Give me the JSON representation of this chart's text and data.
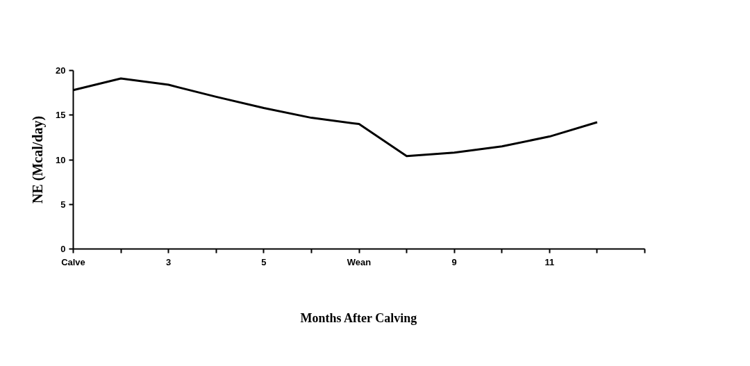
{
  "chart_data": {
    "type": "line",
    "xlabel": "Months After Calving",
    "ylabel": "NE (Mcal/day)",
    "categories": [
      "Calve",
      null,
      "3",
      null,
      "5",
      null,
      "Wean",
      null,
      "9",
      null,
      "11",
      null,
      null
    ],
    "series": [
      {
        "color": "#000000",
        "values": [
          17.8,
          19.1,
          18.4,
          17.05,
          15.8,
          14.7,
          14.0,
          10.4,
          10.8,
          11.5,
          12.6,
          14.2,
          null
        ]
      }
    ],
    "ylim": [
      0,
      20
    ],
    "yticks": [
      0,
      5,
      10,
      15,
      20
    ],
    "grid": false,
    "marker": "none",
    "line_style": "solid"
  }
}
